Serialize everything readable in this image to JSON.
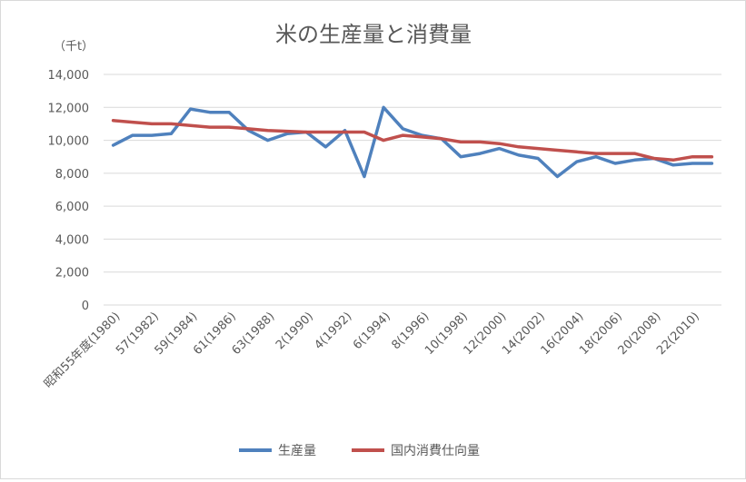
{
  "chart_data": {
    "type": "line",
    "title": "米の生産量と消費量",
    "unit_label": "（千t）",
    "ylim": [
      0,
      14000
    ],
    "yticks": [
      "0",
      "2,000",
      "4,000",
      "6,000",
      "8,000",
      "10,000",
      "12,000",
      "14,000"
    ],
    "ytick_values": [
      0,
      2000,
      4000,
      6000,
      8000,
      10000,
      12000,
      14000
    ],
    "x_count": 32,
    "x_tick_labels": [
      "昭和55年度(1980)",
      "57(1982)",
      "59(1984)",
      "61(1986)",
      "63(1988)",
      "2(1990)",
      "4(1992)",
      "6(1994)",
      "8(1996)",
      "10(1998)",
      "12(2000)",
      "14(2002)",
      "16(2004)",
      "18(2006)",
      "20(2008)",
      "22(2010)"
    ],
    "x_tick_positions": [
      0,
      2,
      4,
      6,
      8,
      10,
      12,
      14,
      16,
      18,
      20,
      22,
      24,
      26,
      28,
      30
    ],
    "grid": true,
    "legend_position": "bottom",
    "series": [
      {
        "name": "生産量",
        "color": "#4f81bd",
        "values": [
          9700,
          10300,
          10300,
          10400,
          11900,
          11700,
          11700,
          10600,
          10000,
          10400,
          10500,
          9600,
          10600,
          7800,
          12000,
          10700,
          10300,
          10100,
          9000,
          9200,
          9500,
          9100,
          8900,
          7800,
          8700,
          9000,
          8600,
          8800,
          8900,
          8500,
          8600,
          8600
        ]
      },
      {
        "name": "国内消費仕向量",
        "color": "#c0504d",
        "values": [
          11200,
          11100,
          11000,
          11000,
          10900,
          10800,
          10800,
          10700,
          10600,
          10550,
          10500,
          10500,
          10500,
          10500,
          10000,
          10300,
          10200,
          10100,
          9900,
          9900,
          9800,
          9600,
          9500,
          9400,
          9300,
          9200,
          9200,
          9200,
          8900,
          8800,
          9000,
          9000
        ]
      }
    ]
  }
}
